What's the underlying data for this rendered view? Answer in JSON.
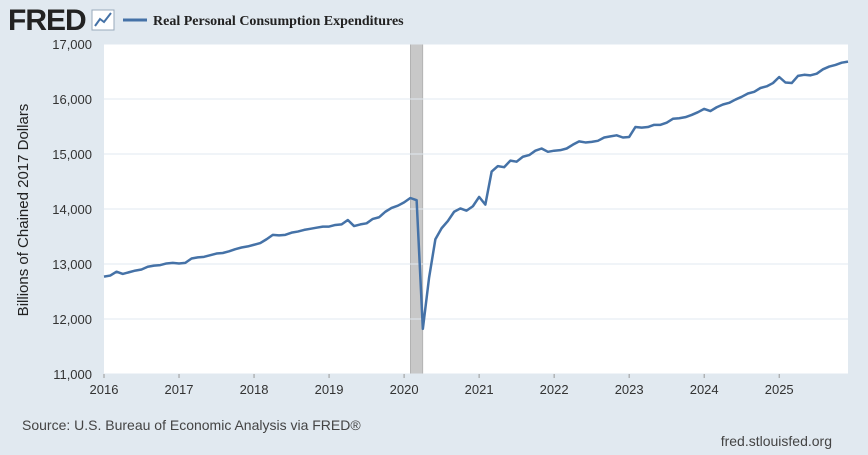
{
  "header": {
    "logo": "FRED"
  },
  "footer": {
    "source": "Source: U.S. Bureau of Economic Analysis via FRED®",
    "url": "fred.stlouisfed.org"
  },
  "chart_data": {
    "type": "line",
    "ylabel": "Billions of Chained 2017 Dollars",
    "x": [
      2016,
      2016.083,
      2016.167,
      2016.25,
      2016.333,
      2016.417,
      2016.5,
      2016.583,
      2016.667,
      2016.75,
      2016.833,
      2016.917,
      2017,
      2017.083,
      2017.167,
      2017.25,
      2017.333,
      2017.417,
      2017.5,
      2017.583,
      2017.667,
      2017.75,
      2017.833,
      2017.917,
      2018,
      2018.083,
      2018.167,
      2018.25,
      2018.333,
      2018.417,
      2018.5,
      2018.583,
      2018.667,
      2018.75,
      2018.833,
      2018.917,
      2019,
      2019.083,
      2019.167,
      2019.25,
      2019.333,
      2019.417,
      2019.5,
      2019.583,
      2019.667,
      2019.75,
      2019.833,
      2019.917,
      2020,
      2020.083,
      2020.167,
      2020.25,
      2020.333,
      2020.417,
      2020.5,
      2020.583,
      2020.667,
      2020.75,
      2020.833,
      2020.917,
      2021,
      2021.083,
      2021.167,
      2021.25,
      2021.333,
      2021.417,
      2021.5,
      2021.583,
      2021.667,
      2021.75,
      2021.833,
      2021.917,
      2022,
      2022.083,
      2022.167,
      2022.25,
      2022.333,
      2022.417,
      2022.5,
      2022.583,
      2022.667,
      2022.75,
      2022.833,
      2022.917,
      2023,
      2023.083,
      2023.167,
      2023.25,
      2023.333,
      2023.417,
      2023.5,
      2023.583,
      2023.667,
      2023.75,
      2023.833,
      2023.917,
      2024,
      2024.083,
      2024.167,
      2024.25,
      2024.333,
      2024.417,
      2024.5,
      2024.583,
      2024.667,
      2024.75,
      2024.833,
      2024.917,
      2025,
      2025.083,
      2025.167,
      2025.25,
      2025.333,
      2025.417,
      2025.5,
      2025.583,
      2025.667,
      2025.75,
      2025.833,
      2025.917
    ],
    "series": [
      {
        "name": "Real Personal Consumption Expenditures",
        "color": "#4572a7",
        "values": [
          12770,
          12790,
          12860,
          12820,
          12850,
          12880,
          12900,
          12950,
          12970,
          12980,
          13010,
          13020,
          13010,
          13020,
          13100,
          13120,
          13130,
          13160,
          13190,
          13200,
          13230,
          13270,
          13300,
          13320,
          13350,
          13380,
          13450,
          13530,
          13520,
          13530,
          13570,
          13590,
          13620,
          13640,
          13660,
          13680,
          13680,
          13710,
          13720,
          13800,
          13690,
          13720,
          13740,
          13820,
          13850,
          13950,
          14020,
          14060,
          14120,
          14200,
          14160,
          11820,
          12750,
          13450,
          13650,
          13780,
          13950,
          14010,
          13970,
          14050,
          14220,
          14080,
          14680,
          14780,
          14760,
          14880,
          14860,
          14950,
          14980,
          15060,
          15100,
          15040,
          15060,
          15070,
          15100,
          15170,
          15230,
          15210,
          15220,
          15240,
          15300,
          15320,
          15340,
          15300,
          15310,
          15490,
          15480,
          15490,
          15530,
          15530,
          15570,
          15640,
          15650,
          15670,
          15710,
          15760,
          15820,
          15780,
          15850,
          15900,
          15930,
          15990,
          16040,
          16100,
          16130,
          16200,
          16230,
          16290,
          16400,
          16300,
          16290,
          16420,
          16440,
          16430,
          16460,
          16540,
          16590,
          16620,
          16660,
          16680
        ]
      }
    ],
    "xlim": [
      2016,
      2025.917
    ],
    "ylim": [
      11000,
      17000
    ],
    "xticks": [
      2016,
      2017,
      2018,
      2019,
      2020,
      2021,
      2022,
      2023,
      2024,
      2025
    ],
    "yticks": [
      {
        "value": 11000,
        "label": "11,000"
      },
      {
        "value": 12000,
        "label": "12,000"
      },
      {
        "value": 13000,
        "label": "13,000"
      },
      {
        "value": 14000,
        "label": "14,000"
      },
      {
        "value": 15000,
        "label": "15,000"
      },
      {
        "value": 16000,
        "label": "16,000"
      },
      {
        "value": 17000,
        "label": "17,000"
      }
    ],
    "grid": true,
    "recessions": [
      [
        2020.083,
        2020.25
      ]
    ],
    "recession_color": "#c8c8c8"
  }
}
